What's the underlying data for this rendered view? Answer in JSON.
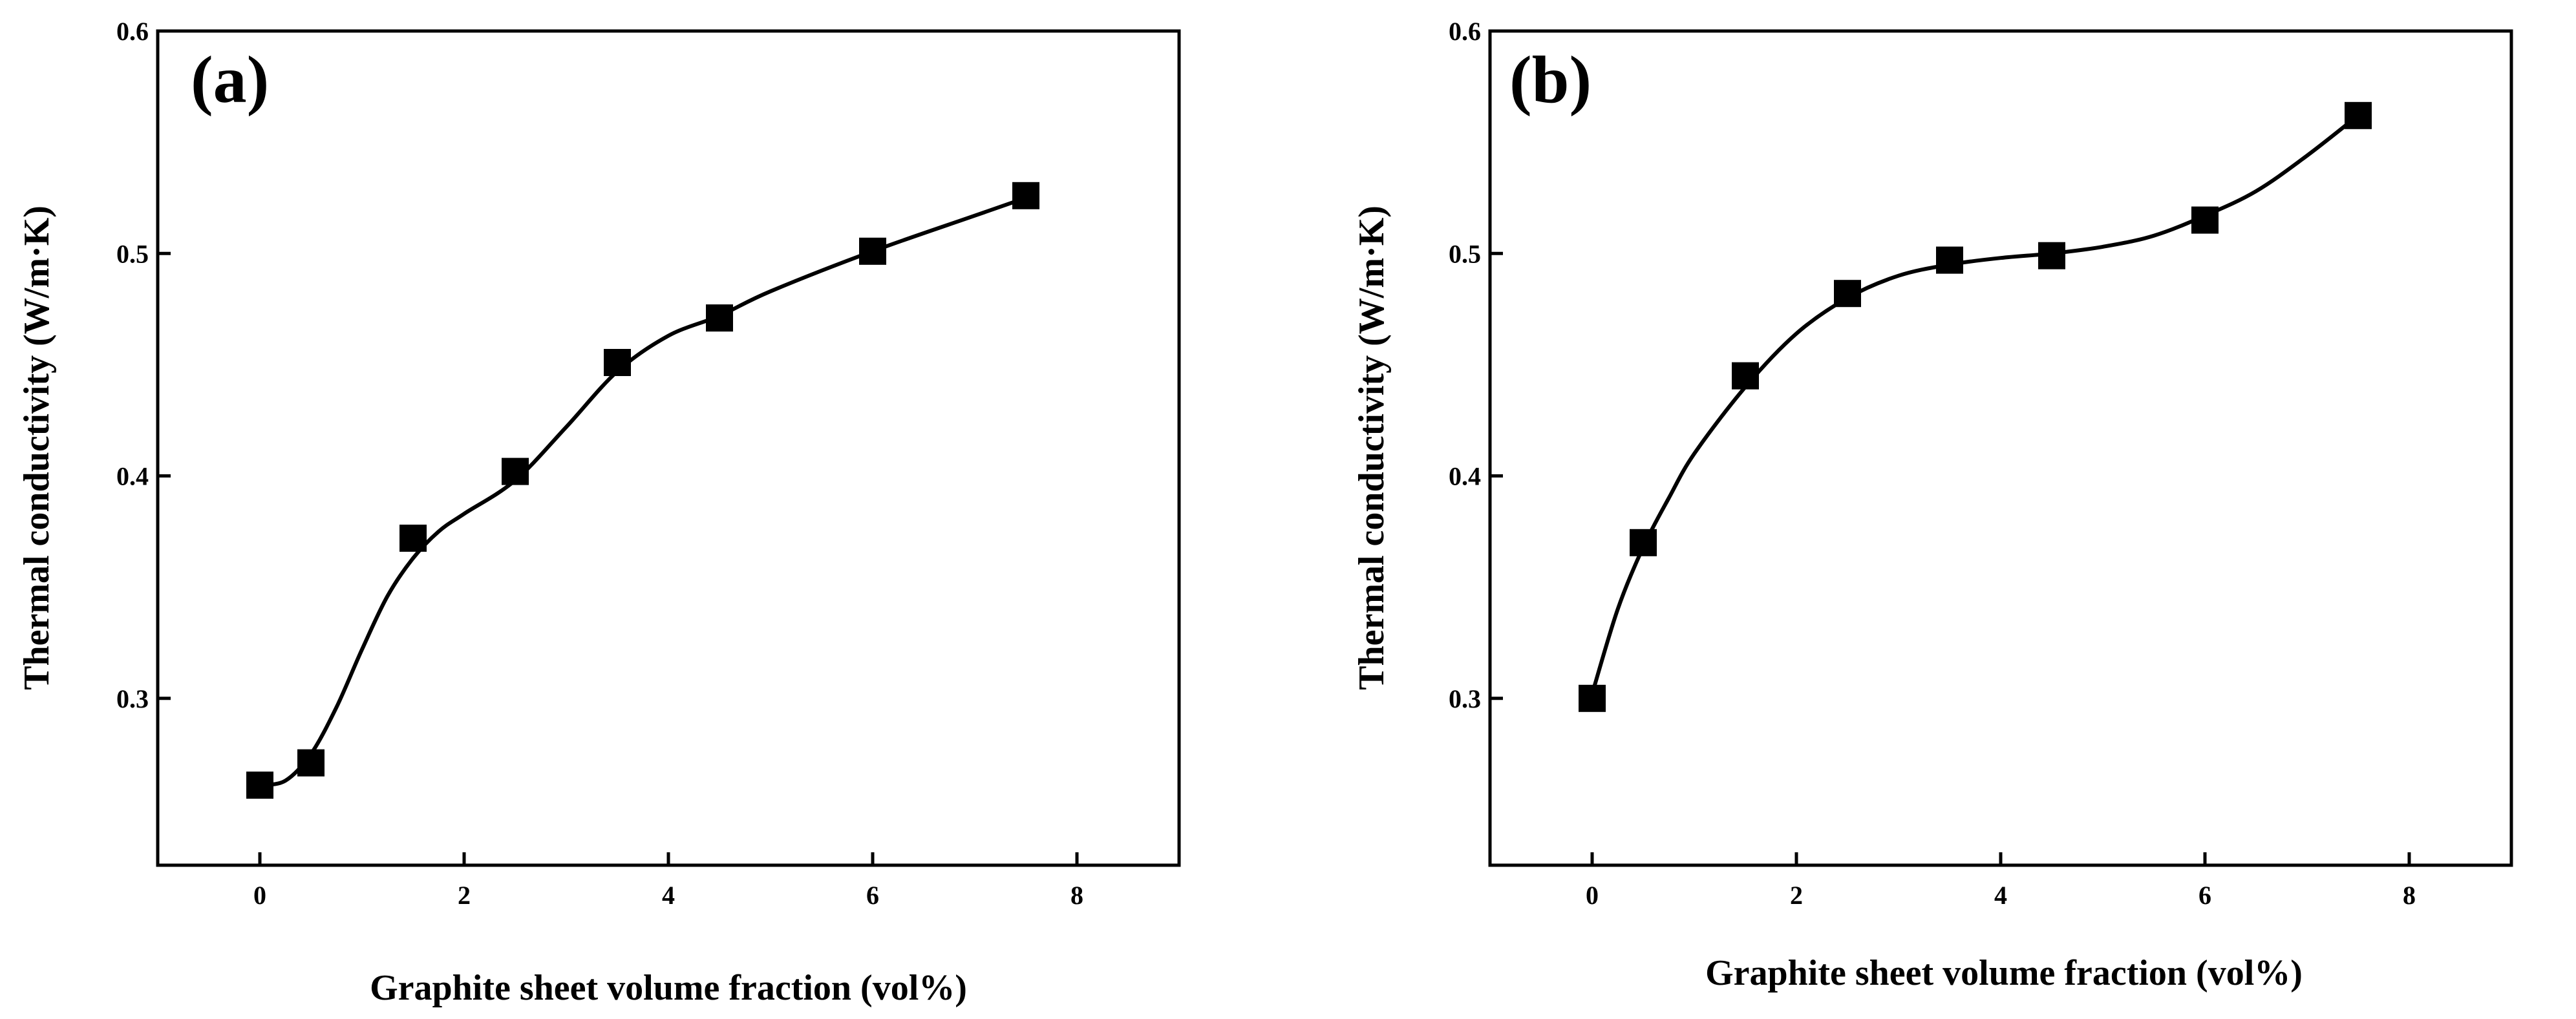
{
  "colors": {
    "axis": "#000000",
    "marker": "#000000",
    "line": "#000000",
    "background": "#ffffff"
  },
  "chart_data": [
    {
      "type": "line",
      "panel_label": "(a)",
      "title": "",
      "xlabel": "Graphite sheet volume fraction (vol%)",
      "ylabel": "Thermal conductivity (W/m·K)",
      "xlim": [
        -1,
        9
      ],
      "ylim": [
        0.225,
        0.6
      ],
      "xticks": [
        0,
        2,
        4,
        6,
        8
      ],
      "xtick_labels": [
        "0",
        "2",
        "4",
        "6",
        "8"
      ],
      "yticks": [
        0.3,
        0.4,
        0.5,
        0.6
      ],
      "ytick_labels": [
        "0.3",
        "0.4",
        "0.5",
        "0.6"
      ],
      "series": [
        {
          "name": "thermal conductivity",
          "marker": "square",
          "x": [
            0,
            0.5,
            1.5,
            2.5,
            3.5,
            4.5,
            6,
            7.5
          ],
          "y": [
            0.261,
            0.271,
            0.372,
            0.402,
            0.451,
            0.471,
            0.501,
            0.526
          ]
        }
      ],
      "fit": {
        "style": "smooth",
        "x": [
          0,
          0.25,
          0.5,
          0.75,
          1,
          1.25,
          1.5,
          1.75,
          2,
          2.5,
          3,
          3.5,
          4,
          4.5,
          5,
          6,
          7,
          7.5
        ],
        "y": [
          0.261,
          0.263,
          0.275,
          0.296,
          0.322,
          0.346,
          0.363,
          0.375,
          0.383,
          0.398,
          0.422,
          0.447,
          0.463,
          0.472,
          0.483,
          0.501,
          0.517,
          0.525
        ]
      }
    },
    {
      "type": "line",
      "panel_label": "(b)",
      "title": "",
      "xlabel": "Graphite sheet volume fraction (vol%)",
      "ylabel": "Thermal conductivity (W/m·K)",
      "xlim": [
        -1,
        9
      ],
      "ylim": [
        0.225,
        0.6
      ],
      "xticks": [
        0,
        2,
        4,
        6,
        8
      ],
      "xtick_labels": [
        "0",
        "2",
        "4",
        "6",
        "8"
      ],
      "yticks": [
        0.3,
        0.4,
        0.5,
        0.6
      ],
      "ytick_labels": [
        "0.3",
        "0.4",
        "0.5",
        "0.6"
      ],
      "series": [
        {
          "name": "thermal conductivity",
          "marker": "square",
          "x": [
            0,
            0.5,
            1.5,
            2.5,
            3.5,
            4.5,
            6,
            7.5
          ],
          "y": [
            0.3,
            0.37,
            0.445,
            0.482,
            0.497,
            0.499,
            0.515,
            0.562
          ]
        }
      ],
      "fit": {
        "style": "smooth",
        "x": [
          0,
          0.25,
          0.5,
          0.75,
          1,
          1.5,
          2,
          2.5,
          3,
          3.5,
          4,
          4.5,
          5,
          5.5,
          6,
          6.5,
          7,
          7.5
        ],
        "y": [
          0.302,
          0.34,
          0.368,
          0.39,
          0.41,
          0.44,
          0.464,
          0.48,
          0.49,
          0.495,
          0.498,
          0.5,
          0.503,
          0.508,
          0.517,
          0.528,
          0.544,
          0.562
        ]
      }
    }
  ]
}
